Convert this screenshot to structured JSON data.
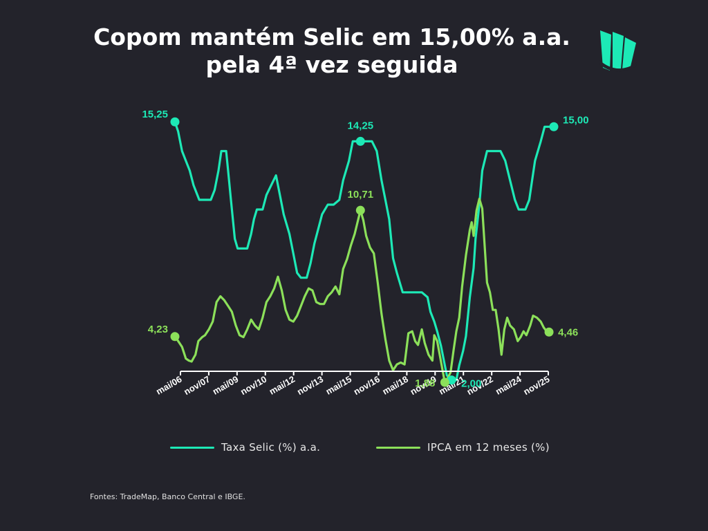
{
  "header": {
    "title_line1": "Copom mantém Selic em 15,00% a.a.",
    "title_line2": "pela 4ª vez seguida"
  },
  "logo": {
    "name": "sail-logo-icon",
    "color": "#1de9b6"
  },
  "colors": {
    "background": "#23232b",
    "selic": "#1de9b6",
    "ipca": "#8ce05a",
    "axis": "#ffffff"
  },
  "chart_data": {
    "type": "line",
    "title": "Copom mantém Selic em 15,00% a.a. pela 4ª vez seguida",
    "xlabel": "",
    "ylabel": "",
    "tick_labels": [
      "mai/06",
      "nov/07",
      "mai/09",
      "nov/10",
      "mai/12",
      "nov/13",
      "mai/15",
      "nov/16",
      "mai/18",
      "nov/19",
      "mai/21",
      "nov/22",
      "mai/24",
      "nov/25"
    ],
    "ylim": [
      0,
      16.5
    ],
    "grid": false,
    "legend_position": "bottom",
    "series": [
      {
        "name": "Taxa Selic (%) a.a.",
        "color": "#1de9b6",
        "points": [
          [
            2006.33,
            15.25
          ],
          [
            2006.5,
            14.75
          ],
          [
            2006.7,
            13.75
          ],
          [
            2006.9,
            13.25
          ],
          [
            2007.1,
            12.75
          ],
          [
            2007.3,
            12.0
          ],
          [
            2007.6,
            11.25
          ],
          [
            2007.8,
            11.25
          ],
          [
            2008.0,
            11.25
          ],
          [
            2008.2,
            11.25
          ],
          [
            2008.4,
            11.75
          ],
          [
            2008.6,
            12.75
          ],
          [
            2008.75,
            13.75
          ],
          [
            2009.0,
            13.75
          ],
          [
            2009.1,
            12.75
          ],
          [
            2009.25,
            11.25
          ],
          [
            2009.45,
            9.25
          ],
          [
            2009.6,
            8.75
          ],
          [
            2009.8,
            8.75
          ],
          [
            2010.1,
            8.75
          ],
          [
            2010.3,
            9.5
          ],
          [
            2010.45,
            10.25
          ],
          [
            2010.6,
            10.75
          ],
          [
            2010.9,
            10.75
          ],
          [
            2011.1,
            11.5
          ],
          [
            2011.35,
            12.0
          ],
          [
            2011.6,
            12.5
          ],
          [
            2011.8,
            11.5
          ],
          [
            2012.0,
            10.5
          ],
          [
            2012.3,
            9.5
          ],
          [
            2012.5,
            8.5
          ],
          [
            2012.7,
            7.5
          ],
          [
            2012.9,
            7.25
          ],
          [
            2013.2,
            7.25
          ],
          [
            2013.4,
            8.0
          ],
          [
            2013.6,
            9.0
          ],
          [
            2013.8,
            9.75
          ],
          [
            2014.0,
            10.5
          ],
          [
            2014.3,
            11.0
          ],
          [
            2014.6,
            11.0
          ],
          [
            2014.9,
            11.25
          ],
          [
            2015.1,
            12.25
          ],
          [
            2015.4,
            13.25
          ],
          [
            2015.6,
            14.25
          ],
          [
            2015.9,
            14.25
          ],
          [
            2016.3,
            14.25
          ],
          [
            2016.6,
            14.25
          ],
          [
            2016.85,
            13.75
          ],
          [
            2017.1,
            12.25
          ],
          [
            2017.3,
            11.25
          ],
          [
            2017.5,
            10.25
          ],
          [
            2017.7,
            8.25
          ],
          [
            2017.9,
            7.5
          ],
          [
            2018.2,
            6.5
          ],
          [
            2018.5,
            6.5
          ],
          [
            2018.8,
            6.5
          ],
          [
            2019.2,
            6.5
          ],
          [
            2019.5,
            6.25
          ],
          [
            2019.65,
            5.5
          ],
          [
            2019.85,
            5.0
          ],
          [
            2020.0,
            4.5
          ],
          [
            2020.2,
            3.75
          ],
          [
            2020.35,
            3.0
          ],
          [
            2020.5,
            2.25
          ],
          [
            2020.7,
            2.0
          ],
          [
            2021.0,
            2.0
          ],
          [
            2021.15,
            2.75
          ],
          [
            2021.35,
            3.5
          ],
          [
            2021.5,
            4.25
          ],
          [
            2021.7,
            6.25
          ],
          [
            2021.9,
            7.75
          ],
          [
            2022.0,
            9.25
          ],
          [
            2022.2,
            11.0
          ],
          [
            2022.35,
            12.75
          ],
          [
            2022.6,
            13.75
          ],
          [
            2022.9,
            13.75
          ],
          [
            2023.3,
            13.75
          ],
          [
            2023.55,
            13.25
          ],
          [
            2023.8,
            12.25
          ],
          [
            2024.05,
            11.25
          ],
          [
            2024.25,
            10.75
          ],
          [
            2024.6,
            10.75
          ],
          [
            2024.8,
            11.25
          ],
          [
            2024.95,
            12.25
          ],
          [
            2025.1,
            13.25
          ],
          [
            2025.4,
            14.25
          ],
          [
            2025.6,
            15.0
          ],
          [
            2025.9,
            15.0
          ],
          [
            2026.08,
            15.0
          ]
        ]
      },
      {
        "name": "IPCA em 12 meses (%)",
        "color": "#8ce05a",
        "points": [
          [
            2006.33,
            4.23
          ],
          [
            2006.5,
            4.0
          ],
          [
            2006.7,
            3.7
          ],
          [
            2006.9,
            3.1
          ],
          [
            2007.05,
            3.0
          ],
          [
            2007.2,
            2.95
          ],
          [
            2007.4,
            3.3
          ],
          [
            2007.55,
            4.0
          ],
          [
            2007.75,
            4.2
          ],
          [
            2007.9,
            4.3
          ],
          [
            2008.1,
            4.6
          ],
          [
            2008.3,
            5.0
          ],
          [
            2008.5,
            6.0
          ],
          [
            2008.7,
            6.3
          ],
          [
            2008.9,
            6.1
          ],
          [
            2009.1,
            5.8
          ],
          [
            2009.3,
            5.5
          ],
          [
            2009.5,
            4.8
          ],
          [
            2009.7,
            4.3
          ],
          [
            2009.9,
            4.2
          ],
          [
            2010.1,
            4.6
          ],
          [
            2010.3,
            5.1
          ],
          [
            2010.5,
            4.8
          ],
          [
            2010.7,
            4.6
          ],
          [
            2010.9,
            5.2
          ],
          [
            2011.1,
            6.0
          ],
          [
            2011.3,
            6.3
          ],
          [
            2011.5,
            6.7
          ],
          [
            2011.7,
            7.3
          ],
          [
            2011.9,
            6.6
          ],
          [
            2012.1,
            5.6
          ],
          [
            2012.3,
            5.1
          ],
          [
            2012.5,
            5.0
          ],
          [
            2012.7,
            5.3
          ],
          [
            2012.9,
            5.8
          ],
          [
            2013.1,
            6.3
          ],
          [
            2013.3,
            6.7
          ],
          [
            2013.5,
            6.6
          ],
          [
            2013.7,
            6.0
          ],
          [
            2013.9,
            5.9
          ],
          [
            2014.1,
            5.9
          ],
          [
            2014.3,
            6.3
          ],
          [
            2014.5,
            6.5
          ],
          [
            2014.7,
            6.8
          ],
          [
            2014.9,
            6.4
          ],
          [
            2015.1,
            7.7
          ],
          [
            2015.3,
            8.2
          ],
          [
            2015.5,
            8.9
          ],
          [
            2015.7,
            9.5
          ],
          [
            2015.9,
            10.3
          ],
          [
            2016.0,
            10.71
          ],
          [
            2016.15,
            10.2
          ],
          [
            2016.3,
            9.4
          ],
          [
            2016.5,
            8.8
          ],
          [
            2016.7,
            8.5
          ],
          [
            2016.9,
            7.0
          ],
          [
            2017.1,
            5.4
          ],
          [
            2017.3,
            4.1
          ],
          [
            2017.5,
            3.0
          ],
          [
            2017.7,
            2.5
          ],
          [
            2017.9,
            2.8
          ],
          [
            2018.1,
            2.9
          ],
          [
            2018.3,
            2.8
          ],
          [
            2018.5,
            4.4
          ],
          [
            2018.7,
            4.5
          ],
          [
            2018.85,
            4.0
          ],
          [
            2019.0,
            3.8
          ],
          [
            2019.2,
            4.6
          ],
          [
            2019.35,
            3.9
          ],
          [
            2019.55,
            3.3
          ],
          [
            2019.75,
            3.0
          ],
          [
            2019.85,
            4.3
          ],
          [
            2020.0,
            4.0
          ],
          [
            2020.15,
            3.2
          ],
          [
            2020.3,
            2.4
          ],
          [
            2020.4,
            1.88
          ],
          [
            2020.55,
            2.1
          ],
          [
            2020.7,
            2.4
          ],
          [
            2020.85,
            3.5
          ],
          [
            2021.0,
            4.5
          ],
          [
            2021.15,
            5.2
          ],
          [
            2021.3,
            6.8
          ],
          [
            2021.5,
            8.4
          ],
          [
            2021.7,
            9.7
          ],
          [
            2021.8,
            10.1
          ],
          [
            2021.9,
            9.4
          ],
          [
            2022.05,
            10.7
          ],
          [
            2022.2,
            11.3
          ],
          [
            2022.35,
            10.8
          ],
          [
            2022.5,
            8.5
          ],
          [
            2022.6,
            7.0
          ],
          [
            2022.75,
            6.5
          ],
          [
            2022.9,
            5.6
          ],
          [
            2023.05,
            5.6
          ],
          [
            2023.2,
            4.6
          ],
          [
            2023.35,
            3.3
          ],
          [
            2023.5,
            4.6
          ],
          [
            2023.65,
            5.2
          ],
          [
            2023.8,
            4.8
          ],
          [
            2024.0,
            4.6
          ],
          [
            2024.2,
            4.0
          ],
          [
            2024.35,
            4.2
          ],
          [
            2024.5,
            4.5
          ],
          [
            2024.65,
            4.3
          ],
          [
            2024.85,
            4.8
          ],
          [
            2025.0,
            5.3
          ],
          [
            2025.2,
            5.2
          ],
          [
            2025.4,
            5.0
          ],
          [
            2025.55,
            4.7
          ],
          [
            2025.7,
            4.5
          ],
          [
            2025.83,
            4.46
          ]
        ]
      }
    ],
    "annotations": [
      {
        "label": "15,25",
        "series": 0,
        "x": 2006.33,
        "y": 15.25,
        "anchor": "left"
      },
      {
        "label": "14,25",
        "series": 0,
        "x": 2016.0,
        "y": 14.25,
        "anchor": "top"
      },
      {
        "label": "15,00",
        "series": 0,
        "x": 2026.08,
        "y": 15.0,
        "anchor": "right"
      },
      {
        "label": "2,00",
        "series": 0,
        "x": 2020.75,
        "y": 2.0,
        "anchor": "right"
      },
      {
        "label": "4,23",
        "series": 1,
        "x": 2006.33,
        "y": 4.23,
        "anchor": "left"
      },
      {
        "label": "10,71",
        "series": 1,
        "x": 2016.0,
        "y": 10.71,
        "anchor": "top"
      },
      {
        "label": "1,88",
        "series": 1,
        "x": 2020.4,
        "y": 1.88,
        "anchor": "left"
      },
      {
        "label": "4,46",
        "series": 1,
        "x": 2025.83,
        "y": 4.46,
        "anchor": "right"
      }
    ]
  },
  "legend": {
    "selic_label": "Taxa Selic (%) a.a.",
    "ipca_label": "IPCA em 12 meses (%)"
  },
  "footer": {
    "source": "Fontes: TradeMap, Banco Central e IBGE."
  }
}
